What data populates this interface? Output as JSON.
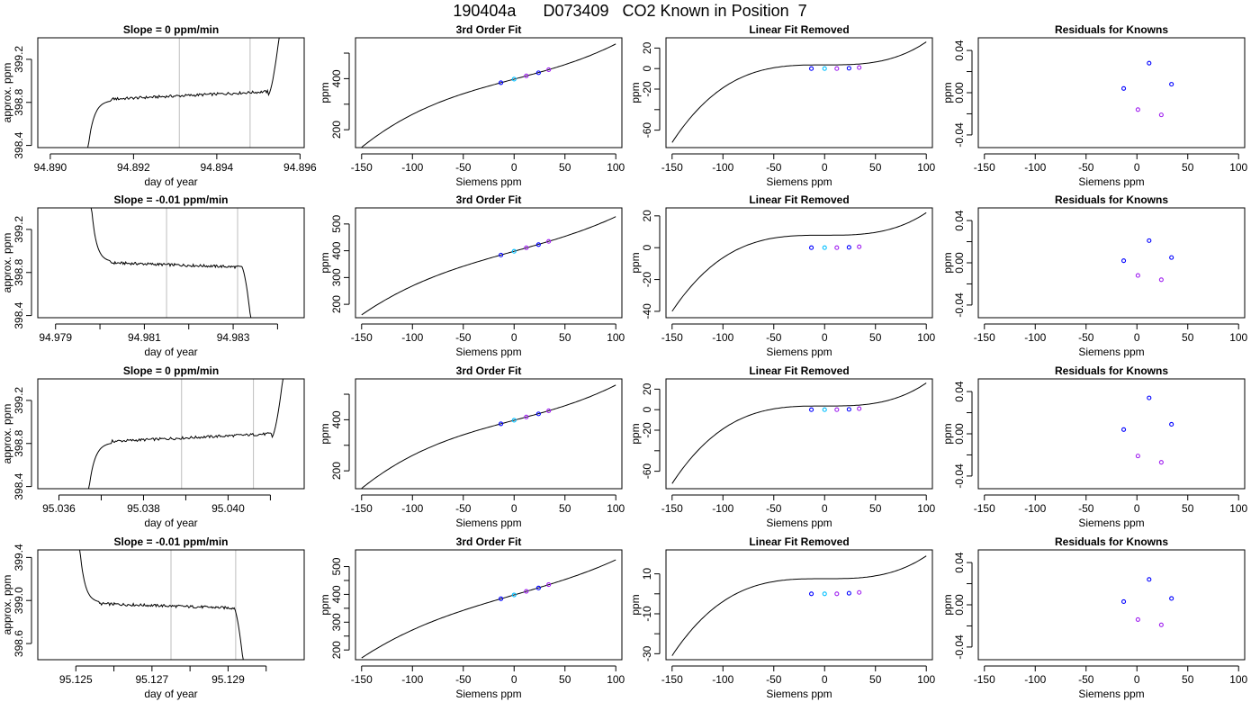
{
  "figure": {
    "title": "190404a      D073409   CO2 Known in Position  7"
  },
  "colors": {
    "curve": "#000000",
    "vline": "#bebebe",
    "known_point": "#0000ff",
    "known_point_alt": "#a020f0",
    "center_point": "#00bfff",
    "marker_red": "#ff0000"
  },
  "chart_data": [
    {
      "row": 1,
      "type": "line",
      "title": "Slope =  0  ppm/min",
      "xlabel": "day of year",
      "ylabel": "approx. ppm",
      "xlim": [
        94.8897,
        94.8961
      ],
      "ylim": [
        398.38,
        399.4
      ],
      "xticks": [
        94.89,
        94.892,
        94.894,
        94.896
      ],
      "xtick_labels": [
        "94.890",
        "94.892",
        "94.894",
        "94.896"
      ],
      "yticks": [
        398.4,
        398.8,
        399.2
      ],
      "ytick_labels": [
        "398.4",
        "398.8",
        "399.2"
      ],
      "vlines": [
        94.8931,
        94.8948
      ],
      "series": [
        {
          "kind": "trace",
          "x0": 94.8909,
          "x1": 94.8955,
          "start": 398.35,
          "plateau": 398.86,
          "end": 399.42,
          "onset": "rising",
          "finish": "rising"
        }
      ]
    },
    {
      "row": 1,
      "type": "line",
      "title": "3rd Order Fit",
      "xlabel": "Siemens ppm",
      "ylabel": "ppm",
      "xlim": [
        -156,
        106
      ],
      "ylim": [
        130,
        560
      ],
      "xticks": [
        -150,
        -100,
        -50,
        0,
        50,
        100
      ],
      "xtick_labels": [
        "-150",
        "-100",
        "-50",
        "0",
        "50",
        "100"
      ],
      "yticks": [
        200,
        300,
        400,
        500
      ],
      "ytick_labels": [
        "200",
        "",
        "400",
        ""
      ],
      "series": [
        {
          "kind": "cubic",
          "x0": -150,
          "x1": 100,
          "y_at_x0": 143,
          "y_at_x1": 548
        }
      ],
      "points": [
        {
          "x": -13,
          "y": 384
        },
        {
          "x": 12,
          "y": 411
        },
        {
          "x": 24,
          "y": 423
        },
        {
          "x": 34,
          "y": 435
        }
      ],
      "center_point": {
        "x": 0,
        "y": 398
      }
    },
    {
      "row": 1,
      "type": "line",
      "title": "Linear Fit Removed",
      "xlabel": "Siemens ppm",
      "ylabel": "ppm",
      "xlim": [
        -156,
        106
      ],
      "ylim": [
        -77,
        30
      ],
      "xticks": [
        -150,
        -100,
        -50,
        0,
        50,
        100
      ],
      "xtick_labels": [
        "-150",
        "-100",
        "-50",
        "0",
        "50",
        "100"
      ],
      "yticks": [
        20,
        0,
        -20,
        -40,
        -60
      ],
      "ytick_labels": [
        "20",
        "0",
        "-20",
        "",
        "-60"
      ],
      "series": [
        {
          "kind": "cubic",
          "x0": -150,
          "x1": 100,
          "y_at_x0": -72,
          "y_at_x1": 26
        }
      ],
      "points": [
        {
          "x": -13,
          "y": 0
        },
        {
          "x": 12,
          "y": 0
        },
        {
          "x": 24,
          "y": 0.3
        },
        {
          "x": 34,
          "y": 1
        }
      ],
      "center_point": {
        "x": 0,
        "y": 0
      }
    },
    {
      "row": 1,
      "type": "scatter",
      "title": "Residuals for Knowns",
      "xlabel": "Siemens ppm",
      "ylabel": "ppm",
      "xlim": [
        -156,
        106
      ],
      "ylim": [
        -0.052,
        0.052
      ],
      "xticks": [
        -150,
        -100,
        -50,
        0,
        50,
        100
      ],
      "xtick_labels": [
        "-150",
        "-100",
        "-50",
        "0",
        "50",
        "100"
      ],
      "yticks": [
        -0.04,
        -0.02,
        0,
        0.02,
        0.04
      ],
      "ytick_labels": [
        "-0.04",
        "",
        "0.00",
        "",
        "0.04"
      ],
      "points": [
        {
          "x": -13,
          "y": 0.004
        },
        {
          "x": 1,
          "y": -0.016
        },
        {
          "x": 12,
          "y": 0.028
        },
        {
          "x": 24,
          "y": -0.021
        },
        {
          "x": 34,
          "y": 0.008
        }
      ]
    },
    {
      "row": 2,
      "type": "line",
      "title": "Slope =  -0.01  ppm/min",
      "xlabel": "day of year",
      "ylabel": "approx. ppm",
      "xlim": [
        94.9786,
        94.9846
      ],
      "ylim": [
        398.38,
        399.4
      ],
      "xticks": [
        94.979,
        94.98,
        94.981,
        94.982,
        94.983,
        94.984
      ],
      "xtick_labels": [
        "94.979",
        "",
        "94.981",
        "",
        "94.983",
        ""
      ],
      "yticks": [
        398.4,
        398.8,
        399.2
      ],
      "ytick_labels": [
        "398.4",
        "398.8",
        "399.2"
      ],
      "vlines": [
        94.9815,
        94.9831
      ],
      "series": [
        {
          "kind": "trace",
          "x0": 94.9798,
          "x1": 94.9834,
          "start": 399.45,
          "plateau": 398.86,
          "end": 398.35,
          "onset": "falling",
          "finish": "falling"
        }
      ]
    },
    {
      "row": 2,
      "type": "line",
      "title": "3rd Order Fit",
      "xlabel": "Siemens ppm",
      "ylabel": "ppm",
      "xlim": [
        -156,
        106
      ],
      "ylim": [
        150,
        560
      ],
      "xticks": [
        -150,
        -100,
        -50,
        0,
        50,
        100
      ],
      "xtick_labels": [
        "-150",
        "-100",
        "-50",
        "0",
        "50",
        "100"
      ],
      "yticks": [
        200,
        300,
        400,
        500
      ],
      "ytick_labels": [
        "200",
        "300",
        "400",
        "500"
      ],
      "series": [
        {
          "kind": "cubic",
          "x0": -150,
          "x1": 100,
          "y_at_x0": 176,
          "y_at_x1": 543
        }
      ],
      "points": [
        {
          "x": -13,
          "y": 384
        },
        {
          "x": 12,
          "y": 411
        },
        {
          "x": 24,
          "y": 423
        },
        {
          "x": 34,
          "y": 435
        }
      ],
      "center_point": {
        "x": 0,
        "y": 398
      }
    },
    {
      "row": 2,
      "type": "line",
      "title": "Linear Fit Removed",
      "xlabel": "Siemens ppm",
      "ylabel": "ppm",
      "xlim": [
        -156,
        106
      ],
      "ylim": [
        -44,
        25
      ],
      "xticks": [
        -150,
        -100,
        -50,
        0,
        50,
        100
      ],
      "xtick_labels": [
        "-150",
        "-100",
        "-50",
        "0",
        "50",
        "100"
      ],
      "yticks": [
        20,
        0,
        -20,
        -40
      ],
      "ytick_labels": [
        "20",
        "0",
        "-20",
        "-40"
      ],
      "series": [
        {
          "kind": "cubic",
          "x0": -150,
          "x1": 100,
          "y_at_x0": -40,
          "y_at_x1": 22
        }
      ],
      "points": [
        {
          "x": -13,
          "y": 0
        },
        {
          "x": 12,
          "y": 0
        },
        {
          "x": 24,
          "y": 0.2
        },
        {
          "x": 34,
          "y": 0.6
        }
      ],
      "center_point": {
        "x": 0,
        "y": 0
      }
    },
    {
      "row": 2,
      "type": "scatter",
      "title": "Residuals for Knowns",
      "xlabel": "Siemens ppm",
      "ylabel": "ppm",
      "xlim": [
        -156,
        106
      ],
      "ylim": [
        -0.052,
        0.052
      ],
      "xticks": [
        -150,
        -100,
        -50,
        0,
        50,
        100
      ],
      "xtick_labels": [
        "-150",
        "-100",
        "-50",
        "0",
        "50",
        "100"
      ],
      "yticks": [
        -0.04,
        -0.02,
        0,
        0.02,
        0.04
      ],
      "ytick_labels": [
        "-0.04",
        "",
        "0.00",
        "",
        "0.04"
      ],
      "points": [
        {
          "x": -13,
          "y": 0.002
        },
        {
          "x": 1,
          "y": -0.012
        },
        {
          "x": 12,
          "y": 0.021
        },
        {
          "x": 24,
          "y": -0.016
        },
        {
          "x": 34,
          "y": 0.005
        }
      ]
    },
    {
      "row": 3,
      "type": "line",
      "title": "Slope =  0  ppm/min",
      "xlabel": "day of year",
      "ylabel": "approx. ppm",
      "xlim": [
        95.0355,
        95.0418
      ],
      "ylim": [
        398.38,
        399.4
      ],
      "xticks": [
        95.036,
        95.037,
        95.038,
        95.039,
        95.04,
        95.041
      ],
      "xtick_labels": [
        "95.036",
        "",
        "95.038",
        "",
        "95.040",
        ""
      ],
      "yticks": [
        398.4,
        398.8,
        399.2
      ],
      "ytick_labels": [
        "398.4",
        "398.8",
        "399.2"
      ],
      "vlines": [
        95.0389,
        95.0406
      ],
      "series": [
        {
          "kind": "trace",
          "x0": 95.0367,
          "x1": 95.0413,
          "start": 398.35,
          "plateau": 398.85,
          "end": 399.42,
          "onset": "rising",
          "finish": "rising"
        }
      ]
    },
    {
      "row": 3,
      "type": "line",
      "title": "3rd Order Fit",
      "xlabel": "Siemens ppm",
      "ylabel": "ppm",
      "xlim": [
        -156,
        106
      ],
      "ylim": [
        130,
        560
      ],
      "xticks": [
        -150,
        -100,
        -50,
        0,
        50,
        100
      ],
      "xtick_labels": [
        "-150",
        "-100",
        "-50",
        "0",
        "50",
        "100"
      ],
      "yticks": [
        200,
        300,
        400,
        500
      ],
      "ytick_labels": [
        "200",
        "",
        "400",
        ""
      ],
      "series": [
        {
          "kind": "cubic",
          "x0": -150,
          "x1": 100,
          "y_at_x0": 143,
          "y_at_x1": 548
        }
      ],
      "points": [
        {
          "x": -13,
          "y": 384
        },
        {
          "x": 12,
          "y": 411
        },
        {
          "x": 24,
          "y": 423
        },
        {
          "x": 34,
          "y": 435
        }
      ],
      "center_point": {
        "x": 0,
        "y": 398
      }
    },
    {
      "row": 3,
      "type": "line",
      "title": "Linear Fit Removed",
      "xlabel": "Siemens ppm",
      "ylabel": "ppm",
      "xlim": [
        -156,
        106
      ],
      "ylim": [
        -77,
        30
      ],
      "xticks": [
        -150,
        -100,
        -50,
        0,
        50,
        100
      ],
      "xtick_labels": [
        "-150",
        "-100",
        "-50",
        "0",
        "50",
        "100"
      ],
      "yticks": [
        20,
        0,
        -20,
        -40,
        -60
      ],
      "ytick_labels": [
        "20",
        "0",
        "-20",
        "",
        "-60"
      ],
      "series": [
        {
          "kind": "cubic",
          "x0": -150,
          "x1": 100,
          "y_at_x0": -72,
          "y_at_x1": 26
        }
      ],
      "points": [
        {
          "x": -13,
          "y": 0
        },
        {
          "x": 12,
          "y": 0
        },
        {
          "x": 24,
          "y": 0.3
        },
        {
          "x": 34,
          "y": 1
        }
      ],
      "center_point": {
        "x": 0,
        "y": 0
      }
    },
    {
      "row": 3,
      "type": "scatter",
      "title": "Residuals for Knowns",
      "xlabel": "Siemens ppm",
      "ylabel": "ppm",
      "xlim": [
        -156,
        106
      ],
      "ylim": [
        -0.052,
        0.052
      ],
      "xticks": [
        -150,
        -100,
        -50,
        0,
        50,
        100
      ],
      "xtick_labels": [
        "-150",
        "-100",
        "-50",
        "0",
        "50",
        "100"
      ],
      "yticks": [
        -0.04,
        -0.02,
        0,
        0.02,
        0.04
      ],
      "ytick_labels": [
        "-0.04",
        "",
        "0.00",
        "",
        "0.04"
      ],
      "points": [
        {
          "x": -13,
          "y": 0.004
        },
        {
          "x": 1,
          "y": -0.021
        },
        {
          "x": 12,
          "y": 0.034
        },
        {
          "x": 24,
          "y": -0.027
        },
        {
          "x": 34,
          "y": 0.009
        }
      ]
    },
    {
      "row": 4,
      "type": "line",
      "title": "Slope =  -0.01  ppm/min",
      "xlabel": "day of year",
      "ylabel": "approx. ppm",
      "xlim": [
        95.124,
        95.131
      ],
      "ylim": [
        398.45,
        399.47
      ],
      "xticks": [
        95.125,
        95.126,
        95.127,
        95.128,
        95.129,
        95.13
      ],
      "xtick_labels": [
        "95.125",
        "",
        "95.127",
        "",
        "95.129",
        ""
      ],
      "yticks": [
        398.6,
        399.0,
        399.4
      ],
      "ytick_labels": [
        "398.6",
        "399.0",
        "399.4"
      ],
      "vlines": [
        95.1275,
        95.1292
      ],
      "series": [
        {
          "kind": "trace",
          "x0": 95.1251,
          "x1": 95.1294,
          "start": 399.5,
          "plateau": 398.94,
          "end": 398.42,
          "onset": "falling",
          "finish": "falling"
        }
      ]
    },
    {
      "row": 4,
      "type": "line",
      "title": "3rd Order Fit",
      "xlabel": "Siemens ppm",
      "ylabel": "ppm",
      "xlim": [
        -156,
        106
      ],
      "ylim": [
        165,
        560
      ],
      "xticks": [
        -150,
        -100,
        -50,
        0,
        50,
        100
      ],
      "xtick_labels": [
        "-150",
        "-100",
        "-50",
        "0",
        "50",
        "100"
      ],
      "yticks": [
        200,
        250,
        300,
        350,
        400,
        450,
        500
      ],
      "ytick_labels": [
        "200",
        "",
        "300",
        "",
        "400",
        "",
        "500"
      ],
      "series": [
        {
          "kind": "cubic",
          "x0": -150,
          "x1": 100,
          "y_at_x0": 190,
          "y_at_x1": 543
        }
      ],
      "points": [
        {
          "x": -13,
          "y": 384
        },
        {
          "x": 12,
          "y": 411
        },
        {
          "x": 24,
          "y": 423
        },
        {
          "x": 34,
          "y": 435
        }
      ],
      "center_point": {
        "x": 0,
        "y": 398
      }
    },
    {
      "row": 4,
      "type": "line",
      "title": "Linear Fit Removed",
      "xlabel": "Siemens ppm",
      "ylabel": "ppm",
      "xlim": [
        -156,
        106
      ],
      "ylim": [
        -33,
        22
      ],
      "xticks": [
        -150,
        -100,
        -50,
        0,
        50,
        100
      ],
      "xtick_labels": [
        "-150",
        "-100",
        "-50",
        "0",
        "50",
        "100"
      ],
      "yticks": [
        10,
        0,
        -10,
        -20,
        -30
      ],
      "ytick_labels": [
        "10",
        "",
        "-10",
        "",
        "-30"
      ],
      "series": [
        {
          "kind": "cubic",
          "x0": -150,
          "x1": 100,
          "y_at_x0": -31,
          "y_at_x1": 19
        }
      ],
      "points": [
        {
          "x": -13,
          "y": 0
        },
        {
          "x": 12,
          "y": 0
        },
        {
          "x": 24,
          "y": 0.3
        },
        {
          "x": 34,
          "y": 0.7
        }
      ],
      "center_point": {
        "x": 0,
        "y": 0
      }
    },
    {
      "row": 4,
      "type": "scatter",
      "title": "Residuals for Knowns",
      "xlabel": "Siemens ppm",
      "ylabel": "ppm",
      "xlim": [
        -156,
        106
      ],
      "ylim": [
        -0.052,
        0.052
      ],
      "xticks": [
        -150,
        -100,
        -50,
        0,
        50,
        100
      ],
      "xtick_labels": [
        "-150",
        "-100",
        "-50",
        "0",
        "50",
        "100"
      ],
      "yticks": [
        -0.04,
        -0.02,
        0,
        0.02,
        0.04
      ],
      "ytick_labels": [
        "-0.04",
        "",
        "0.00",
        "",
        "0.04"
      ],
      "points": [
        {
          "x": -13,
          "y": 0.003
        },
        {
          "x": 1,
          "y": -0.014
        },
        {
          "x": 12,
          "y": 0.024
        },
        {
          "x": 24,
          "y": -0.019
        },
        {
          "x": 34,
          "y": 0.006
        }
      ]
    }
  ]
}
